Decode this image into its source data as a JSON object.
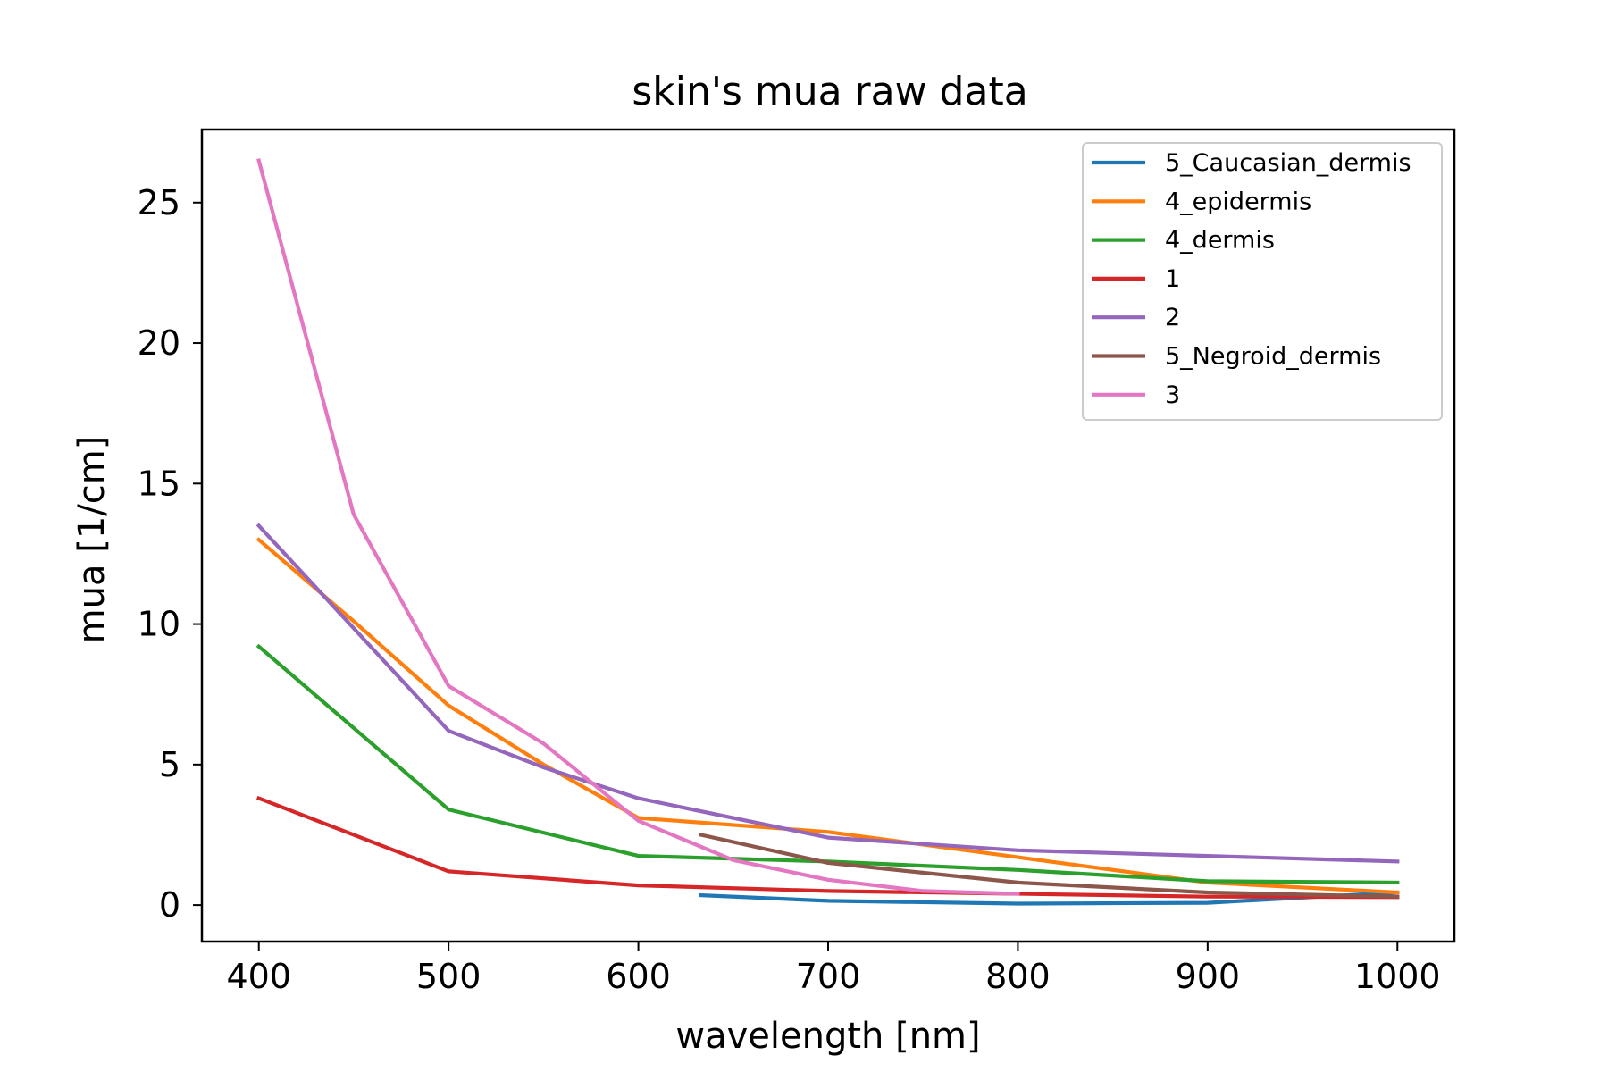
{
  "chart_data": {
    "type": "line",
    "title": "skin's mua raw data",
    "xlabel": "wavelength [nm]",
    "ylabel": "mua [1/cm]",
    "xlim": [
      370,
      1030
    ],
    "ylim": [
      -1.3,
      27.6
    ],
    "x_ticks": [
      400,
      500,
      600,
      700,
      800,
      900,
      1000
    ],
    "y_ticks": [
      0,
      5,
      10,
      15,
      20,
      25
    ],
    "grid": false,
    "legend_position": "top-right",
    "series": [
      {
        "name": "5_Caucasian_dermis",
        "color": "#1f77b4",
        "x": [
          633,
          700,
          800,
          900,
          1000
        ],
        "y": [
          0.35,
          0.15,
          0.05,
          0.08,
          0.45
        ]
      },
      {
        "name": "4_epidermis",
        "color": "#ff7f0e",
        "x": [
          400,
          450,
          500,
          550,
          600,
          700,
          800,
          900,
          1000
        ],
        "y": [
          13.0,
          10.1,
          7.1,
          5.0,
          3.1,
          2.6,
          1.7,
          0.8,
          0.45
        ]
      },
      {
        "name": "4_dermis",
        "color": "#2ca02c",
        "x": [
          400,
          500,
          600,
          700,
          800,
          900,
          1000
        ],
        "y": [
          9.2,
          3.4,
          1.75,
          1.55,
          1.25,
          0.85,
          0.8
        ]
      },
      {
        "name": "1",
        "color": "#d62728",
        "x": [
          400,
          500,
          600,
          700,
          800,
          900,
          1000
        ],
        "y": [
          3.8,
          1.2,
          0.7,
          0.5,
          0.4,
          0.3,
          0.28
        ]
      },
      {
        "name": "2",
        "color": "#9467bd",
        "x": [
          400,
          500,
          550,
          600,
          700,
          800,
          900,
          1000
        ],
        "y": [
          13.5,
          6.2,
          4.9,
          3.8,
          2.4,
          1.95,
          1.75,
          1.55
        ]
      },
      {
        "name": "5_Negroid_dermis",
        "color": "#8c564b",
        "x": [
          633,
          700,
          800,
          900,
          1000
        ],
        "y": [
          2.5,
          1.5,
          0.8,
          0.45,
          0.3
        ]
      },
      {
        "name": "3",
        "color": "#e377c2",
        "x": [
          400,
          450,
          500,
          550,
          600,
          650,
          700,
          750,
          800
        ],
        "y": [
          26.5,
          13.9,
          7.8,
          5.75,
          3.0,
          1.6,
          0.9,
          0.5,
          0.4
        ]
      }
    ]
  }
}
